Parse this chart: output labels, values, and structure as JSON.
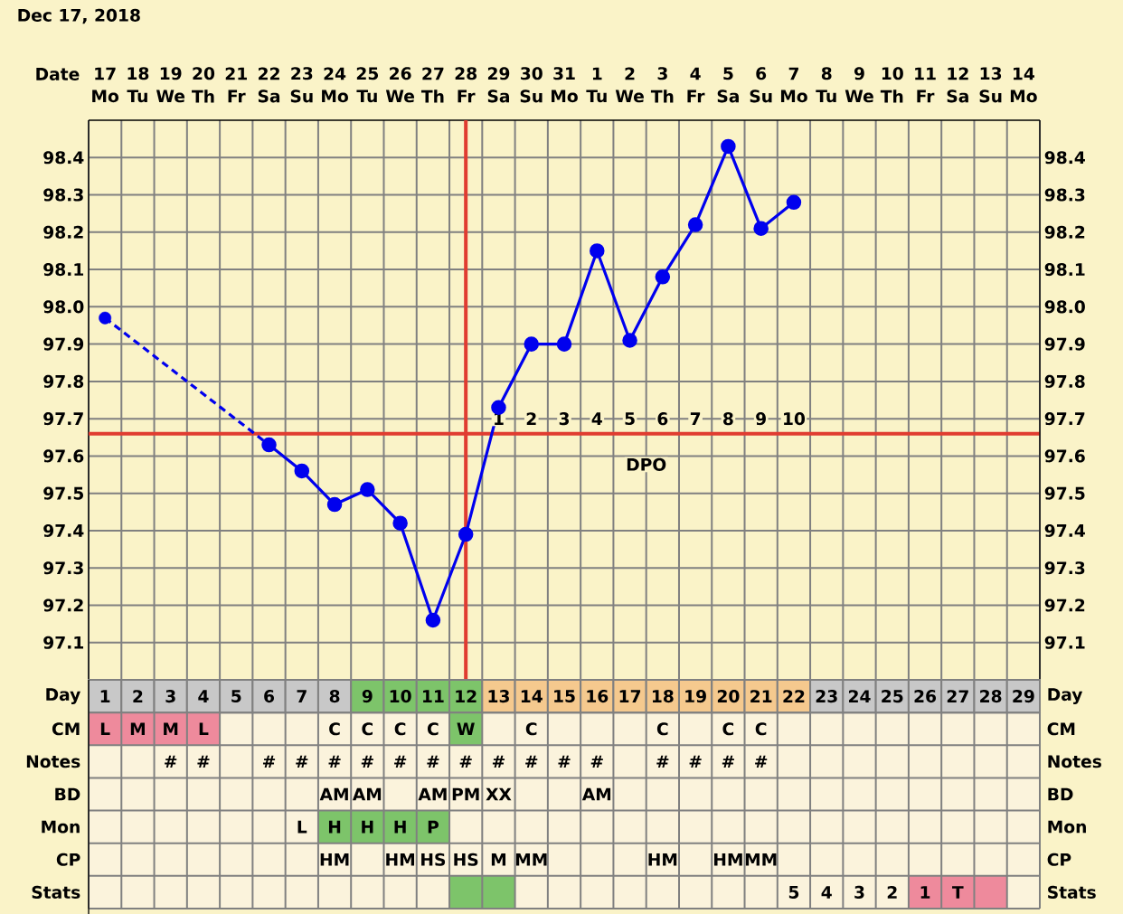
{
  "chart_data": [
    {
      "type": "line",
      "title": "Dec 17, 2018",
      "xlabel": "Date",
      "categories": [
        "17",
        "18",
        "19",
        "20",
        "21",
        "22",
        "23",
        "24",
        "25",
        "26",
        "27",
        "28",
        "29",
        "30",
        "31",
        "1",
        "2",
        "3",
        "4",
        "5",
        "6",
        "7",
        "8",
        "9",
        "10",
        "11",
        "12",
        "13",
        "14"
      ],
      "ylim": [
        97.0,
        98.5
      ],
      "yticks": [
        97.1,
        97.2,
        97.3,
        97.4,
        97.5,
        97.6,
        97.7,
        97.8,
        97.9,
        {
          "value": 98.0,
          "label": "98.0"
        },
        98.1,
        98.2,
        98.3,
        98.4
      ],
      "y2lim": [
        97.0,
        98.5
      ],
      "y2ticks": [
        97.1,
        97.2,
        97.3,
        97.4,
        97.5,
        97.6,
        97.7,
        97.8,
        97.9,
        {
          "value": 98.0,
          "label": "98.0"
        },
        98.1,
        98.2,
        98.3,
        98.4
      ],
      "grid": true,
      "series": [
        {
          "type": "line",
          "color": "#0000ee",
          "marker": "none",
          "line_style": "dashed",
          "x": [
            "17",
            "22"
          ],
          "values": [
            97.97,
            97.63
          ]
        },
        {
          "type": "scatter",
          "color": "#0000ee",
          "marker": "circle",
          "x": [
            "17"
          ],
          "values": [
            97.97
          ]
        },
        {
          "type": "line",
          "color": "#0000ee",
          "marker": "circle",
          "line_style": "solid",
          "values": [
            null,
            null,
            null,
            null,
            null,
            97.63,
            97.56,
            97.47,
            97.51,
            97.42,
            97.16,
            97.39,
            97.73,
            97.9,
            97.9,
            98.15,
            97.91,
            98.08,
            98.22,
            98.43,
            98.21,
            98.28,
            null,
            null,
            null,
            null,
            null,
            null,
            null
          ]
        }
      ],
      "ref_lines": [
        {
          "axis": "y",
          "value": 97.66,
          "color": "#e03c31"
        },
        {
          "axis": "x",
          "value": "28",
          "color": "#e03c31"
        }
      ],
      "annotations": [
        "Mo",
        "Tu",
        "We",
        "Th",
        "Fr",
        "Sa",
        "Su",
        "Mo",
        "Tu",
        "We",
        "Th",
        "Fr",
        "Sa",
        "Su",
        "Mo",
        "Tu",
        "We",
        "Th",
        "Fr",
        "Sa",
        "Su",
        "Mo",
        "Tu",
        "We",
        "Th",
        "Fr",
        "Sa",
        "Su",
        "Mo",
        {
          "text": "1",
          "x": "29",
          "y": 97.7
        },
        {
          "text": "2",
          "x": "30",
          "y": 97.7
        },
        {
          "text": "3",
          "x": "31",
          "y": 97.7
        },
        {
          "text": "4",
          "x": "1",
          "y": 97.7
        },
        {
          "text": "5",
          "x": "2",
          "y": 97.7
        },
        {
          "text": "6",
          "x": "3",
          "y": 97.7
        },
        {
          "text": "7",
          "x": "4",
          "y": 97.7
        },
        {
          "text": "8",
          "x": "5",
          "y": 97.7
        },
        {
          "text": "9",
          "x": "6",
          "y": 97.7
        },
        {
          "text": "10",
          "x": "7",
          "y": 97.7
        },
        "DPO"
      ]
    },
    {
      "type": "heatmap",
      "color": "#fbf3dc",
      "xlabel": "Day",
      "categories": [
        "1",
        "2",
        "3",
        "4",
        "5",
        "6",
        "7",
        "8",
        "9",
        "10",
        "11",
        "12",
        "13",
        "14",
        "15",
        "16",
        "17",
        "18",
        "19",
        "20",
        "21",
        "22",
        "23",
        "24",
        "25",
        "26",
        "27",
        "28",
        "29"
      ],
      "y_categories": [
        "CM",
        "Notes",
        "BD",
        "Mon",
        "CP",
        "Stats"
      ],
      "y2_categories": [
        "CM",
        "Notes",
        "BD",
        "Mon",
        "CP",
        "Stats"
      ],
      "cells": [
        [
          null,
          null,
          null,
          null,
          null,
          null,
          null,
          null,
          null,
          null,
          null,
          null,
          null,
          null,
          null,
          null,
          null,
          null,
          null,
          null,
          null,
          null,
          null,
          null,
          null,
          null,
          null,
          null,
          null
        ],
        [
          null,
          null,
          null,
          null,
          null,
          null,
          null,
          null,
          null,
          null,
          null,
          null,
          null,
          null,
          null,
          null,
          null,
          null,
          null,
          null,
          null,
          null,
          null,
          null,
          null,
          null,
          null,
          null,
          null
        ],
        [
          null,
          null,
          null,
          null,
          null,
          null,
          null,
          null,
          null,
          null,
          null,
          null,
          null,
          null,
          null,
          null,
          null,
          null,
          null,
          null,
          null,
          null,
          null,
          null,
          null,
          null,
          null,
          null,
          null
        ],
        [
          null,
          null,
          null,
          null,
          null,
          null,
          null,
          null,
          null,
          null,
          null,
          null,
          null,
          null,
          null,
          null,
          null,
          null,
          null,
          null,
          null,
          null,
          null,
          null,
          null,
          null,
          null,
          null,
          null
        ],
        [
          null,
          null,
          null,
          null,
          null,
          null,
          null,
          null,
          null,
          null,
          null,
          null,
          null,
          null,
          null,
          null,
          null,
          null,
          null,
          null,
          null,
          null,
          null,
          null,
          null,
          null,
          null,
          null,
          null
        ],
        [
          null,
          null,
          null,
          null,
          null,
          null,
          null,
          null,
          null,
          null,
          null,
          null,
          null,
          null,
          null,
          null,
          null,
          null,
          null,
          null,
          null,
          null,
          null,
          null,
          null,
          null,
          null,
          null,
          null
        ]
      ],
      "cell_labels": [
        [
          "L",
          "M",
          "M",
          "L",
          null,
          null,
          null,
          "C",
          "C",
          "C",
          "C",
          "W",
          null,
          "C",
          null,
          null,
          null,
          "C",
          null,
          "C",
          "C",
          null,
          null,
          null,
          null,
          null,
          null,
          null,
          null
        ],
        [
          null,
          null,
          "#",
          "#",
          null,
          "#",
          "#",
          "#",
          "#",
          "#",
          "#",
          "#",
          "#",
          "#",
          "#",
          "#",
          null,
          "#",
          "#",
          "#",
          "#",
          null,
          null,
          null,
          null,
          null,
          null,
          null,
          null
        ],
        [
          null,
          null,
          null,
          null,
          null,
          null,
          null,
          "AM",
          "AM",
          null,
          "AM",
          "PM",
          "XX",
          null,
          null,
          "AM",
          null,
          null,
          null,
          null,
          null,
          null,
          null,
          null,
          null,
          null,
          null,
          null,
          null
        ],
        [
          null,
          null,
          null,
          null,
          null,
          null,
          "L",
          "H",
          "H",
          "H",
          "P",
          null,
          null,
          null,
          null,
          null,
          null,
          null,
          null,
          null,
          null,
          null,
          null,
          null,
          null,
          null,
          null,
          null,
          null
        ],
        [
          null,
          null,
          null,
          null,
          null,
          null,
          null,
          "HM",
          null,
          "HM",
          "HS",
          "HS",
          "M",
          "MM",
          null,
          null,
          null,
          "HM",
          null,
          "HM",
          "MM",
          null,
          null,
          null,
          null,
          null,
          null,
          null,
          null
        ],
        [
          null,
          null,
          null,
          null,
          null,
          null,
          null,
          null,
          null,
          null,
          null,
          null,
          null,
          null,
          null,
          null,
          null,
          null,
          null,
          null,
          null,
          "5",
          "4",
          "3",
          "2",
          "1",
          "T",
          null,
          null
        ]
      ],
      "colors": [
        [
          "#c8c8c8",
          "#c8c8c8",
          "#c8c8c8",
          "#c8c8c8",
          "#c8c8c8",
          "#c8c8c8",
          "#c8c8c8",
          "#c8c8c8",
          "#7dc46a",
          "#7dc46a",
          "#7dc46a",
          "#7dc46a",
          "#f5c98e",
          "#f5c98e",
          "#f5c98e",
          "#f5c98e",
          "#f5c98e",
          "#f5c98e",
          "#f5c98e",
          "#f5c98e",
          "#f5c98e",
          "#f5c98e",
          "#c8c8c8",
          "#c8c8c8",
          "#c8c8c8",
          "#c8c8c8",
          "#c8c8c8",
          "#c8c8c8",
          "#c8c8c8"
        ],
        [
          "#ee8a9c",
          "#ee8a9c",
          "#ee8a9c",
          "#ee8a9c",
          null,
          null,
          null,
          null,
          null,
          null,
          null,
          "#7dc46a",
          null,
          null,
          null,
          null,
          null,
          null,
          null,
          null,
          null,
          null,
          null,
          null,
          null,
          null,
          null,
          null,
          null
        ],
        [
          null,
          null,
          null,
          null,
          null,
          null,
          null,
          null,
          null,
          null,
          null,
          null,
          null,
          null,
          null,
          null,
          null,
          null,
          null,
          null,
          null,
          null,
          null,
          null,
          null,
          null,
          null,
          null,
          null
        ],
        [
          null,
          null,
          null,
          null,
          null,
          null,
          null,
          null,
          null,
          null,
          null,
          null,
          null,
          null,
          null,
          null,
          null,
          null,
          null,
          null,
          null,
          null,
          null,
          null,
          null,
          null,
          null,
          null,
          null
        ],
        [
          null,
          null,
          null,
          null,
          null,
          null,
          null,
          "#7dc46a",
          "#7dc46a",
          "#7dc46a",
          "#7dc46a",
          null,
          null,
          null,
          null,
          null,
          null,
          null,
          null,
          null,
          null,
          null,
          null,
          null,
          null,
          null,
          null,
          null,
          null
        ],
        [
          null,
          null,
          null,
          null,
          null,
          null,
          null,
          null,
          null,
          null,
          null,
          null,
          null,
          null,
          null,
          null,
          null,
          null,
          null,
          null,
          null,
          null,
          null,
          null,
          null,
          null,
          null,
          null,
          null
        ],
        [
          null,
          null,
          null,
          null,
          null,
          null,
          null,
          null,
          null,
          null,
          null,
          "#7dc46a",
          "#7dc46a",
          null,
          null,
          null,
          null,
          null,
          null,
          null,
          null,
          null,
          null,
          null,
          null,
          "#ee8a9c",
          "#ee8a9c",
          "#ee8a9c",
          null
        ]
      ]
    }
  ]
}
